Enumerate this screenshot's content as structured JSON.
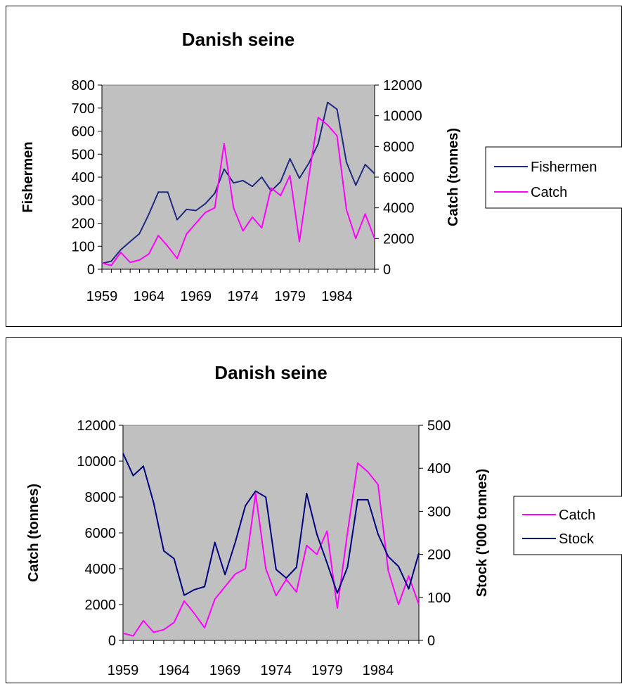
{
  "chart_data": [
    {
      "type": "line",
      "title": "Danish seine",
      "x": [
        1959,
        1960,
        1961,
        1962,
        1963,
        1964,
        1965,
        1966,
        1967,
        1968,
        1969,
        1970,
        1971,
        1972,
        1973,
        1974,
        1975,
        1976,
        1977,
        1978,
        1979,
        1980,
        1981,
        1982,
        1983,
        1984,
        1985,
        1986,
        1987,
        1988
      ],
      "x_tick_labels": [
        "1959",
        "1964",
        "1969",
        "1974",
        "1979",
        "1984"
      ],
      "y_left": {
        "label": "Fishermen",
        "range": [
          0,
          800
        ],
        "ticks": [
          "0",
          "100",
          "200",
          "300",
          "400",
          "500",
          "600",
          "700",
          "800"
        ]
      },
      "y_right": {
        "label": "Catch (tonnes)",
        "range": [
          0,
          12000
        ],
        "ticks": [
          "0",
          "2000",
          "4000",
          "6000",
          "8000",
          "10000",
          "12000"
        ]
      },
      "series": [
        {
          "name": "Fishermen",
          "axis": "left",
          "color": "#1f2a80",
          "values": [
            25,
            35,
            85,
            120,
            155,
            240,
            335,
            335,
            215,
            260,
            255,
            285,
            330,
            435,
            375,
            385,
            360,
            400,
            340,
            380,
            480,
            395,
            460,
            545,
            725,
            695,
            465,
            365,
            455,
            415
          ]
        },
        {
          "name": "Catch",
          "axis": "right",
          "color": "#ff00ff",
          "values": [
            400,
            250,
            1100,
            450,
            600,
            1000,
            2200,
            1500,
            700,
            2300,
            3000,
            3700,
            4000,
            8200,
            4000,
            2500,
            3400,
            2700,
            5300,
            4800,
            6100,
            1800,
            6000,
            9900,
            9400,
            8700,
            3900,
            2000,
            3600,
            2000
          ]
        }
      ],
      "grid": false,
      "plot_background": "#c0c0c0",
      "legend": {
        "placement": "right",
        "entries": [
          "Fishermen",
          "Catch"
        ]
      }
    },
    {
      "type": "line",
      "title": "Danish seine",
      "x": [
        1959,
        1960,
        1961,
        1962,
        1963,
        1964,
        1965,
        1966,
        1967,
        1968,
        1969,
        1970,
        1971,
        1972,
        1973,
        1974,
        1975,
        1976,
        1977,
        1978,
        1979,
        1980,
        1981,
        1982,
        1983,
        1984,
        1985,
        1986,
        1987,
        1988
      ],
      "x_tick_labels": [
        "1959",
        "1964",
        "1969",
        "1974",
        "1979",
        "1984"
      ],
      "y_left": {
        "label": "Catch (tonnes)",
        "range": [
          0,
          12000
        ],
        "ticks": [
          "0",
          "2000",
          "4000",
          "6000",
          "8000",
          "10000",
          "12000"
        ]
      },
      "y_right": {
        "label": "Stock ('000 tonnes)",
        "range": [
          0,
          500
        ],
        "ticks": [
          "0",
          "100",
          "200",
          "300",
          "400",
          "500"
        ]
      },
      "series": [
        {
          "name": "Catch",
          "axis": "left",
          "color": "#ff00ff",
          "values": [
            400,
            250,
            1100,
            450,
            600,
            1000,
            2200,
            1500,
            700,
            2300,
            3000,
            3700,
            4000,
            8200,
            4000,
            2500,
            3400,
            2700,
            5300,
            4800,
            6100,
            1800,
            6000,
            9900,
            9400,
            8700,
            3900,
            2000,
            3600,
            2000
          ]
        },
        {
          "name": "Stock",
          "axis": "right",
          "color": "#000080",
          "values": [
            435,
            383,
            405,
            320,
            208,
            190,
            105,
            118,
            125,
            228,
            153,
            228,
            313,
            347,
            333,
            165,
            145,
            170,
            342,
            247,
            180,
            110,
            170,
            327,
            327,
            247,
            195,
            172,
            120,
            203
          ]
        }
      ],
      "grid": false,
      "plot_background": "#c0c0c0",
      "legend": {
        "placement": "right",
        "entries": [
          "Catch",
          "Stock"
        ]
      }
    }
  ]
}
